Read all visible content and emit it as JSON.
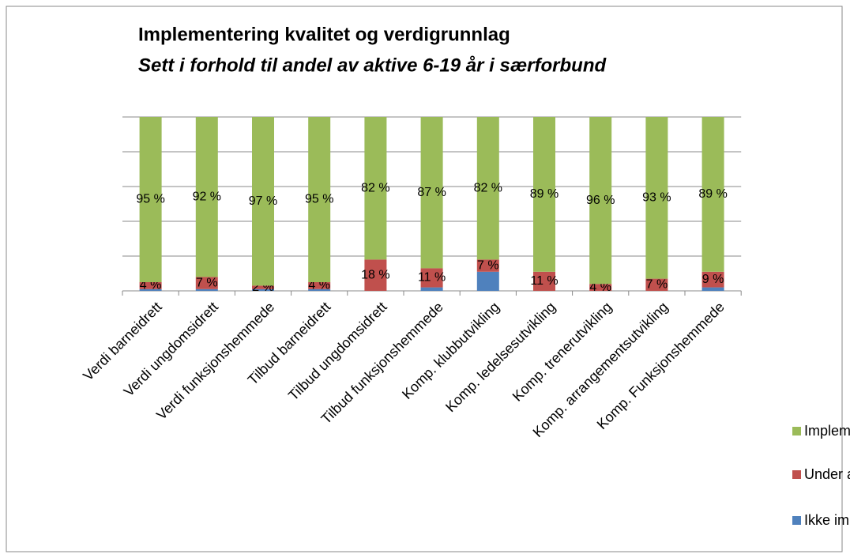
{
  "chart_data": {
    "type": "stacked_bar",
    "title": "Implementering kvalitet  og verdigrunnlag",
    "subtitle": "Sett i forhold til andel av aktive 6-19 år i særforbund",
    "categories": [
      "Verdi barneidrett",
      "Verdi ungdomsidrett",
      "Verdi funksjonshemmede",
      "Tilbud barneidrett",
      "Tilbud ungdomsidrett",
      "Tilbud funksjonshemmede",
      "Komp. klubbutvikling",
      "Komp. ledelsesutvikling",
      "Komp. trenerutvikling",
      "Komp. arrangementsutvikling",
      "Komp. Funksjonshemmede"
    ],
    "series": [
      {
        "name": "Ikke implementert",
        "color": "#4f81bd",
        "values": [
          1,
          1,
          1,
          1,
          0,
          2,
          11,
          0,
          0,
          0,
          2
        ]
      },
      {
        "name": "Under arbeid",
        "color": "#c0504d",
        "values": [
          4,
          7,
          2,
          4,
          18,
          11,
          7,
          11,
          4,
          7,
          9
        ],
        "value_labels": [
          "4 %",
          "7 %",
          "2 %",
          "4 %",
          "18 %",
          "11 %",
          "7 %",
          "11 %",
          "4 %",
          "7 %",
          "9 %"
        ]
      },
      {
        "name": "Implementert",
        "color": "#9bbb59",
        "values": [
          95,
          92,
          97,
          95,
          82,
          87,
          82,
          89,
          96,
          93,
          89
        ],
        "value_labels": [
          "95 %",
          "92 %",
          "97 %",
          "95 %",
          "82 %",
          "87 %",
          "82 %",
          "89 %",
          "96 %",
          "93 %",
          "89 %"
        ]
      }
    ],
    "ylim": [
      0,
      100
    ],
    "yticks": [
      0,
      20,
      40,
      60,
      80,
      100
    ],
    "grid": true,
    "legend": "bottom-right"
  }
}
